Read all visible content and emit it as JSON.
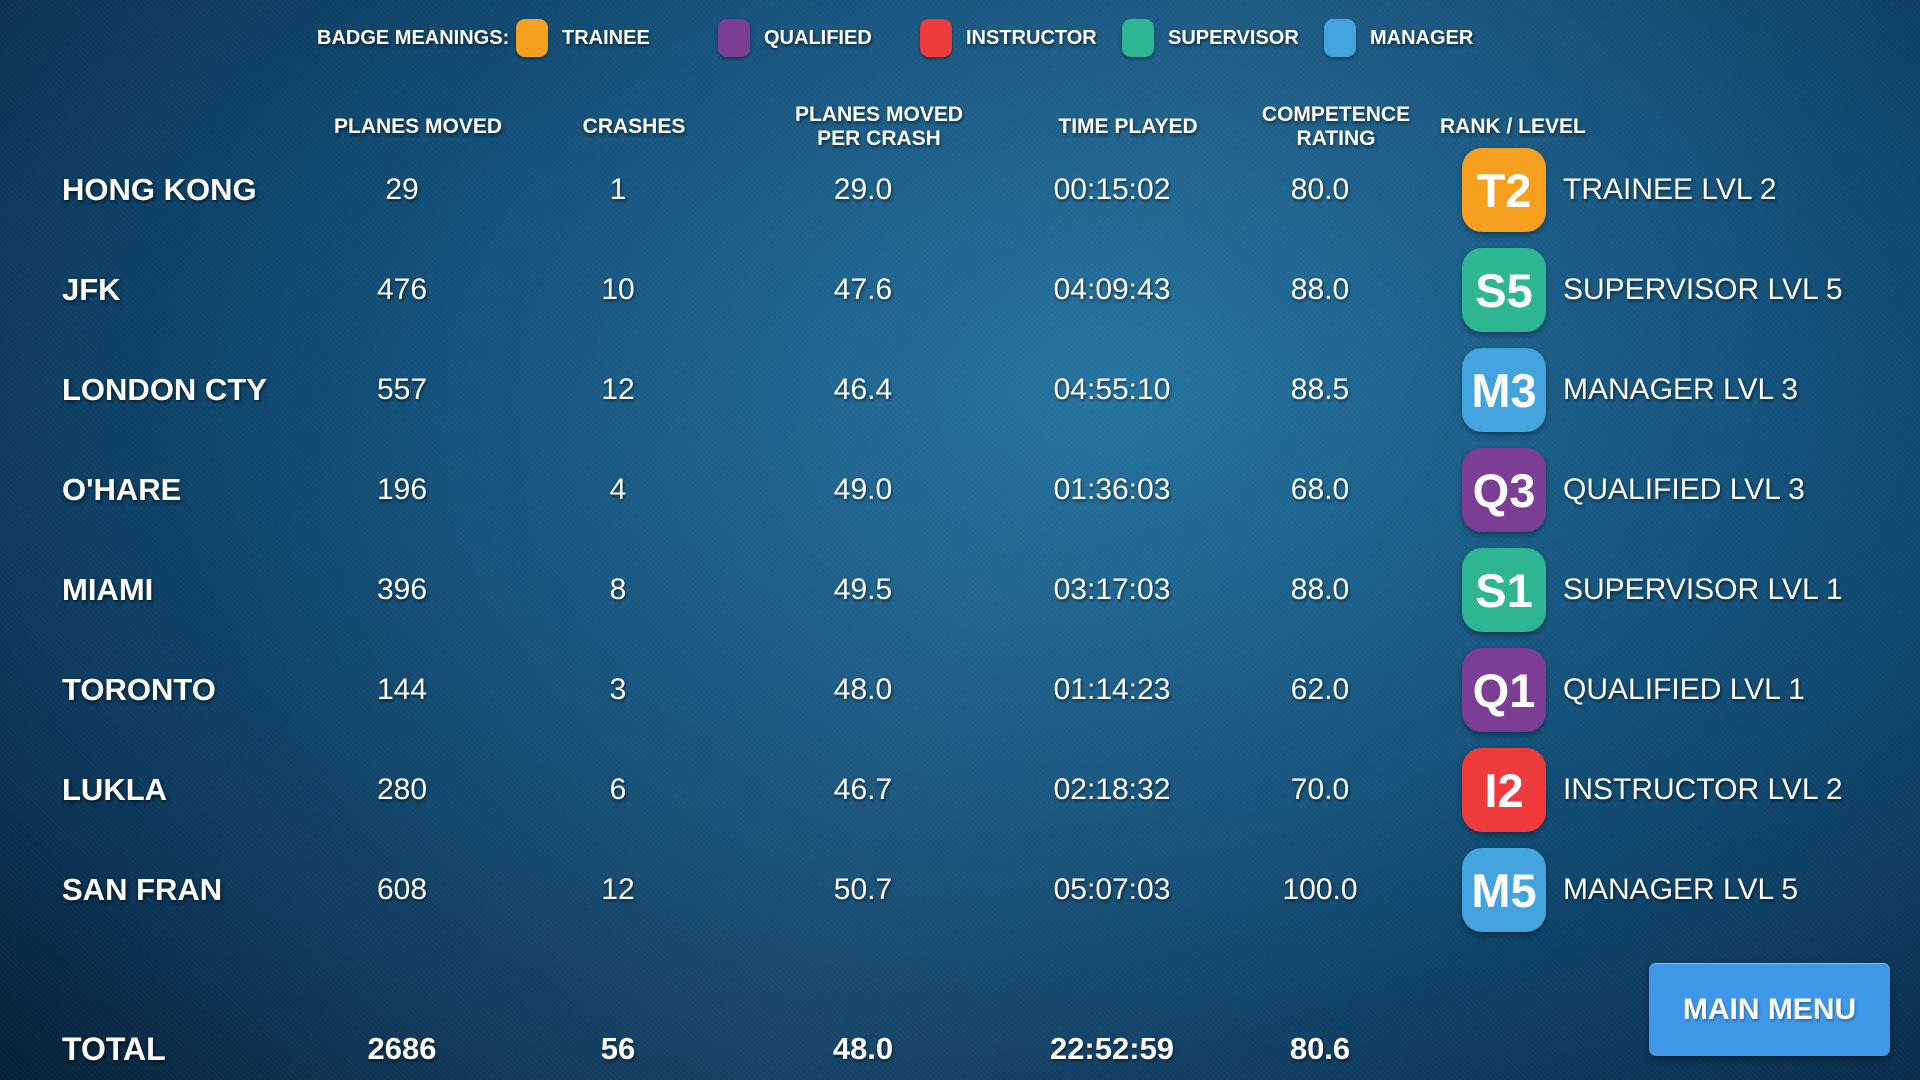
{
  "legend": {
    "title": "BADGE MEANINGS:",
    "items": [
      {
        "label": "TRAINEE",
        "color": "#F5A11F"
      },
      {
        "label": "QUALIFIED",
        "color": "#7C3D95"
      },
      {
        "label": "INSTRUCTOR",
        "color": "#EF3B3C"
      },
      {
        "label": "SUPERVISOR",
        "color": "#2EB593"
      },
      {
        "label": "MANAGER",
        "color": "#42A3DE"
      }
    ]
  },
  "columns": {
    "planes_moved": {
      "label": "PLANES MOVED",
      "sub": ""
    },
    "crashes": {
      "label": "CRASHES",
      "sub": ""
    },
    "per_crash": {
      "label": "PLANES MOVED",
      "sub": "PER CRASH"
    },
    "time_played": {
      "label": "TIME PLAYED",
      "sub": ""
    },
    "rating": {
      "label": "COMPETENCE",
      "sub": "RATING"
    },
    "rank": {
      "label": "RANK / LEVEL",
      "sub": ""
    }
  },
  "rows": [
    {
      "airport": "HONG KONG",
      "planes_moved": "29",
      "crashes": "1",
      "per_crash": "29.0",
      "time_played": "00:15:02",
      "rating": "80.0",
      "badge": "T2",
      "badge_color": "#F5A11F",
      "rank": "TRAINEE LVL 2"
    },
    {
      "airport": "JFK",
      "planes_moved": "476",
      "crashes": "10",
      "per_crash": "47.6",
      "time_played": "04:09:43",
      "rating": "88.0",
      "badge": "S5",
      "badge_color": "#2EB593",
      "rank": "SUPERVISOR LVL 5"
    },
    {
      "airport": "LONDON CTY",
      "planes_moved": "557",
      "crashes": "12",
      "per_crash": "46.4",
      "time_played": "04:55:10",
      "rating": "88.5",
      "badge": "M3",
      "badge_color": "#42A3DE",
      "rank": "MANAGER LVL 3"
    },
    {
      "airport": "O'HARE",
      "planes_moved": "196",
      "crashes": "4",
      "per_crash": "49.0",
      "time_played": "01:36:03",
      "rating": "68.0",
      "badge": "Q3",
      "badge_color": "#7C3D95",
      "rank": "QUALIFIED LVL 3"
    },
    {
      "airport": "MIAMI",
      "planes_moved": "396",
      "crashes": "8",
      "per_crash": "49.5",
      "time_played": "03:17:03",
      "rating": "88.0",
      "badge": "S1",
      "badge_color": "#2EB593",
      "rank": "SUPERVISOR LVL 1"
    },
    {
      "airport": "TORONTO",
      "planes_moved": "144",
      "crashes": "3",
      "per_crash": "48.0",
      "time_played": "01:14:23",
      "rating": "62.0",
      "badge": "Q1",
      "badge_color": "#7C3D95",
      "rank": "QUALIFIED LVL 1"
    },
    {
      "airport": "LUKLA",
      "planes_moved": "280",
      "crashes": "6",
      "per_crash": "46.7",
      "time_played": "02:18:32",
      "rating": "70.0",
      "badge": "I2",
      "badge_color": "#EF3B3C",
      "rank": "INSTRUCTOR LVL 2"
    },
    {
      "airport": "SAN FRAN",
      "planes_moved": "608",
      "crashes": "12",
      "per_crash": "50.7",
      "time_played": "05:07:03",
      "rating": "100.0",
      "badge": "M5",
      "badge_color": "#42A3DE",
      "rank": "MANAGER LVL 5"
    }
  ],
  "total": {
    "label": "TOTAL",
    "planes_moved": "2686",
    "crashes": "56",
    "per_crash": "48.0",
    "time_played": "22:52:59",
    "rating": "80.6"
  },
  "main_menu_button": {
    "label": "MAIN MENU",
    "color": "#3E97E8"
  }
}
